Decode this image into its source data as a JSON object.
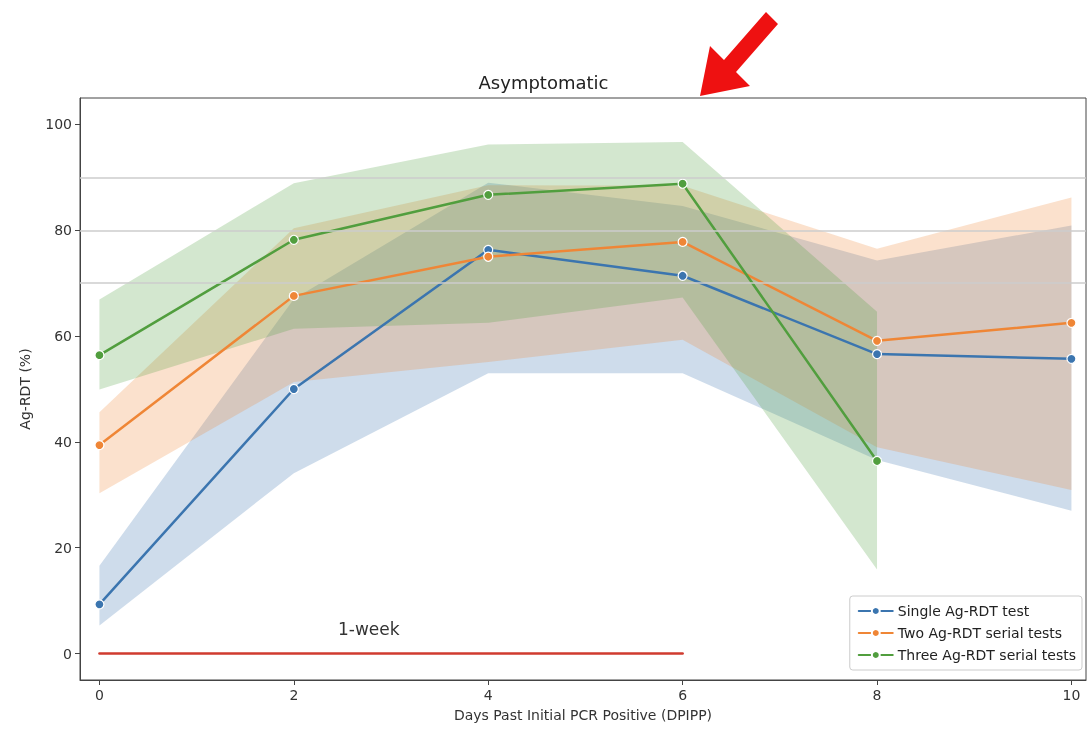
{
  "chart_data": {
    "type": "line",
    "title": "Asymptomatic",
    "xlabel": "Days Past Initial PCR Positive (DPIPP)",
    "ylabel": "Ag-RDT (%)",
    "x": [
      0,
      2,
      4,
      6,
      8,
      10
    ],
    "series": [
      {
        "name": "Single Ag-RDT test",
        "color": "#3b75af",
        "values": [
          9.3,
          50,
          76.3,
          71.4,
          56.6,
          55.7
        ],
        "lower": [
          5.3,
          34.1,
          53,
          53,
          36.6,
          27
        ],
        "upper": [
          16.6,
          67,
          89,
          84.6,
          74.3,
          80.9
        ]
      },
      {
        "name": "Two Ag-RDT serial tests",
        "color": "#ef8636",
        "values": [
          39.4,
          67.6,
          75,
          77.8,
          59.1,
          62.5
        ],
        "lower": [
          30.3,
          51.3,
          55.1,
          59.3,
          39,
          30.9
        ],
        "upper": [
          45.6,
          80.4,
          88.5,
          88.4,
          76.5,
          86.2
        ]
      },
      {
        "name": "Three Ag-RDT serial tests",
        "color": "#519e3e",
        "x": [
          0,
          2,
          4,
          6,
          8
        ],
        "values": [
          56.4,
          78.2,
          86.7,
          88.8,
          36.4
        ],
        "lower": [
          49.9,
          61.4,
          62.5,
          67.3,
          15.9
        ],
        "upper": [
          66.9,
          88.9,
          96.2,
          96.7,
          64.6
        ]
      },
      {
        "type": "line",
        "color": "#d03b2f",
        "x": [
          0,
          6
        ],
        "values": [
          0,
          0
        ],
        "marker": "none"
      }
    ],
    "xlim": [
      -0.2,
      10.15
    ],
    "xticks": [
      0,
      2,
      4,
      6,
      8,
      10
    ],
    "ylim": [
      -5,
      105
    ],
    "yticks": [
      0,
      20,
      40,
      60,
      80,
      100
    ],
    "ref_lines": [
      {
        "axis": "y",
        "value": 70,
        "color": "#cccccc"
      },
      {
        "axis": "y",
        "value": 80,
        "color": "#cccccc"
      },
      {
        "axis": "y",
        "value": 90,
        "color": "#cccccc"
      }
    ],
    "annotations": [
      "1-week"
    ],
    "legend": "bottom right",
    "marker": "circle",
    "line_style": "solid"
  }
}
